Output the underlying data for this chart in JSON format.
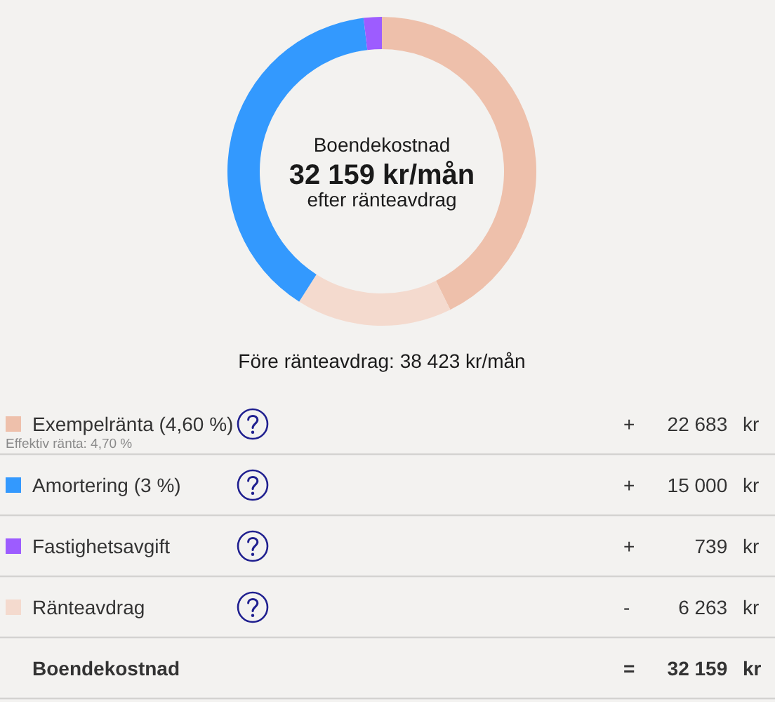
{
  "chart_data": [
    {
      "type": "donut",
      "categories": [
        null,
        null,
        null,
        null
      ],
      "values": [
        42.7,
        16.3,
        39.1,
        1.9
      ],
      "colors": [
        "#eec0ab",
        "#f4dace",
        "#3399fe",
        "#9d5cff"
      ],
      "annotations": [
        "Boendekostnad",
        "32 159 kr/mån",
        "efter ränteavdrag",
        "Före ränteavdrag: 38 423 kr/mån"
      ]
    },
    {
      "type": "other",
      "categories": [
        "Exempelränta (4,60 %)",
        "Amortering (3 %)",
        "Fastighetsavgift",
        "Ränteavdrag",
        "Boendekostnad"
      ],
      "value_labels": [
        "+ 22 683 kr",
        "+ 15 000 kr",
        "+ 739 kr",
        "- 6 263 kr",
        "= 32 159 kr"
      ],
      "colors": [
        "#eec0ab",
        "#3399fe",
        "#9d5cff",
        "#f4dace",
        null
      ],
      "annotations": [
        "Effektiv ränta: 4,70 %"
      ]
    }
  ]
}
